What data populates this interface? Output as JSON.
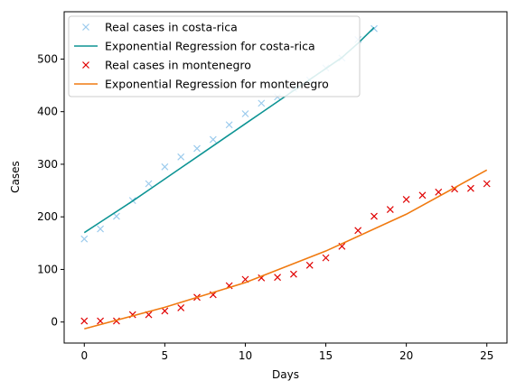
{
  "chart_data": {
    "type": "scatter",
    "title": "",
    "xlabel": "Days",
    "ylabel": "Cases",
    "xlim": [
      -1.25,
      26.25
    ],
    "ylim": [
      -40,
      590
    ],
    "xticks": [
      0,
      5,
      10,
      15,
      20,
      25
    ],
    "yticks": [
      0,
      100,
      200,
      300,
      400,
      500
    ],
    "grid": false,
    "legend_position": "top-left",
    "series": [
      {
        "name": "Real cases in costa-rica",
        "kind": "markers",
        "marker": "x",
        "color": "#9ccbed",
        "x": [
          0,
          1,
          2,
          3,
          4,
          5,
          6,
          7,
          8,
          9,
          10,
          11,
          12,
          13,
          14,
          15,
          16,
          17,
          18
        ],
        "y": [
          158,
          177,
          201,
          231,
          263,
          295,
          314,
          330,
          347,
          375,
          396,
          416,
          428,
          444,
          460,
          483,
          502,
          537,
          558
        ]
      },
      {
        "name": "Exponential Regression for costa-rica",
        "kind": "line",
        "color": "#0d9494",
        "x": [
          0,
          1,
          2,
          3,
          4,
          5,
          6,
          7,
          8,
          9,
          10,
          11,
          12,
          13,
          14,
          15,
          16,
          17,
          18
        ],
        "y": [
          170,
          190,
          210,
          230,
          251,
          272,
          293,
          314,
          335,
          356,
          377,
          398,
          419,
          440,
          461,
          482,
          503,
          530,
          560
        ]
      },
      {
        "name": "Real cases in montenegro",
        "kind": "markers",
        "marker": "x",
        "color": "#e00000",
        "x": [
          0,
          1,
          2,
          3,
          4,
          5,
          6,
          7,
          8,
          9,
          10,
          11,
          12,
          13,
          14,
          15,
          16,
          17,
          18,
          19,
          20,
          21,
          22,
          23,
          24,
          25
        ],
        "y": [
          2,
          2,
          2,
          14,
          14,
          21,
          27,
          47,
          52,
          69,
          81,
          84,
          85,
          91,
          108,
          122,
          144,
          174,
          201,
          214,
          233,
          241,
          247,
          253,
          254,
          263
        ]
      },
      {
        "name": "Exponential Regression for montenegro",
        "kind": "line",
        "color": "#f07a10",
        "x": [
          0,
          5,
          10,
          15,
          20,
          25
        ],
        "y": [
          -13,
          28,
          75,
          135,
          205,
          289
        ]
      }
    ]
  }
}
